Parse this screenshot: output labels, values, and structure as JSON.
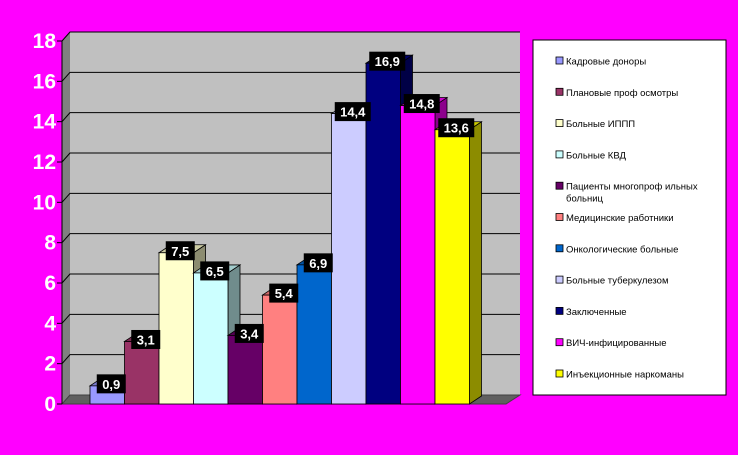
{
  "chart_data": {
    "type": "bar",
    "style": "3d-clustered-columns",
    "ylim": [
      0,
      18
    ],
    "yticks": [
      "0",
      "2",
      "4",
      "6",
      "8",
      "10",
      "12",
      "14",
      "16",
      "18"
    ],
    "grid": true,
    "legend_position": "right",
    "background": "#ff00ff",
    "plot_wall_color": "#c0c0c0",
    "series": [
      {
        "name": "Кадровые доноры",
        "value": 0.9,
        "label": "0,9",
        "color": "#9999ff"
      },
      {
        "name": "Плановые проф осмотры",
        "value": 3.1,
        "label": "3,1",
        "color": "#993366"
      },
      {
        "name": "Больные ИППП",
        "value": 7.5,
        "label": "7,5",
        "color": "#ffffcc"
      },
      {
        "name": "Больные КВД",
        "value": 6.5,
        "label": "6,5",
        "color": "#ccffff"
      },
      {
        "name": "Пациенты многопрофильных больниц",
        "legend_lines": [
          "Пациенты многопроф ильных",
          "больниц"
        ],
        "value": 3.4,
        "label": "3,4",
        "color": "#660066"
      },
      {
        "name": "Медицинские работники",
        "value": 5.4,
        "label": "5,4",
        "color": "#ff8080"
      },
      {
        "name": "Онкологические больные",
        "value": 6.9,
        "label": "6,9",
        "color": "#0066cc"
      },
      {
        "name": "Больные туберкулезом",
        "value": 14.4,
        "label": "14,4",
        "color": "#ccccff"
      },
      {
        "name": "Заключенные",
        "value": 16.9,
        "label": "16,9",
        "color": "#000080"
      },
      {
        "name": "ВИЧ-инфицированные",
        "value": 14.8,
        "label": "14,8",
        "color": "#ff00ff"
      },
      {
        "name": "Инъекционные наркоманы",
        "value": 13.6,
        "label": "13,6",
        "color": "#ffff00"
      }
    ]
  }
}
